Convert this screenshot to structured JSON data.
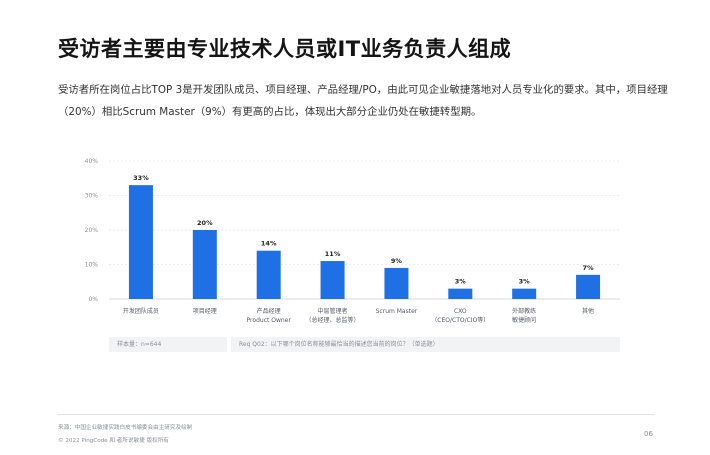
{
  "page": {
    "title": "受访者主要由专业技术人员或IT业务负责人组成",
    "intro": "受访者所在岗位占比TOP 3是开发团队成员、项目经理、产品经理/PO，由此可见企业敏捷落地对人员专业化的要求。其中，项目经理（20%）相比Scrum Master（9%）有更高的占比，体现出大部分企业仍处在敏捷转型期。",
    "sample_note": "样本量：n=644",
    "question_note": "Req Q02：以下哪个岗位名称能够最恰当的描述您当前的岗位？（单选题）",
    "footer_source": "来源：中国企业敏捷实践白皮书编委会由主研究及绘制",
    "footer_copyright": "© 2022 PingCode 和 者所说敏捷 版权所有",
    "page_number": "06"
  },
  "chart_data": {
    "type": "bar",
    "categories": [
      [
        "开发团队成员"
      ],
      [
        "项目经理"
      ],
      [
        "产品经理",
        "Product Owner"
      ],
      [
        "中层管理者",
        "（总经理、总监等）"
      ],
      [
        "Scrum Master"
      ],
      [
        "CXO",
        "（CEO/CTO/CIO等）"
      ],
      [
        "外部教练",
        "敏捷顾问"
      ],
      [
        "其他"
      ]
    ],
    "values": [
      33,
      20,
      14,
      11,
      9,
      3,
      3,
      7
    ],
    "value_labels": [
      "33%",
      "20%",
      "14%",
      "11%",
      "9%",
      "3%",
      "3%",
      "7%"
    ],
    "yticks": [
      0,
      10,
      20,
      30,
      40
    ],
    "ytick_labels": [
      "0%",
      "10%",
      "20%",
      "30%",
      "40%"
    ],
    "ylim": [
      0,
      40
    ],
    "grid": true,
    "bar_color": "#1f6fe5",
    "grid_color": "#e6e8eb",
    "title": "",
    "xlabel": "",
    "ylabel": ""
  }
}
